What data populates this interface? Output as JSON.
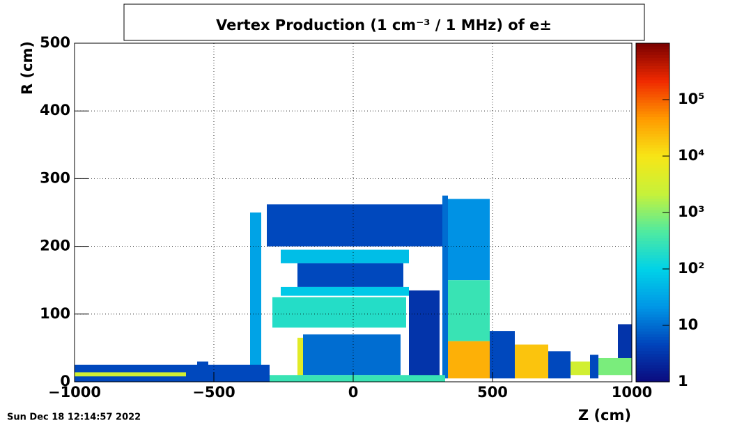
{
  "chart_data": {
    "type": "heatmap",
    "title": "Vertex Production (1 cm⁻³ / 1 MHz) of  e±",
    "x_label": "Z (cm)",
    "y_label": "R (cm)",
    "timestamp": "Sun Dec 18 12:14:57 2022",
    "xlim": [
      -1000,
      1000
    ],
    "ylim": [
      0,
      500
    ],
    "xticks": [
      {
        "value": -1000,
        "label": "−1000"
      },
      {
        "value": -500,
        "label": "−500"
      },
      0,
      500,
      1000
    ],
    "yticks": [
      0,
      100,
      200,
      300,
      400,
      500
    ],
    "zlim": [
      1,
      1000000
    ],
    "zscale": "log",
    "zticks": [
      1,
      10,
      {
        "value": 100,
        "label": "10²"
      },
      {
        "value": 1000,
        "label": "10³"
      },
      {
        "value": 10000,
        "label": "10⁴"
      },
      {
        "value": 100000,
        "label": "10⁵"
      }
    ],
    "grid": true,
    "colormap": [
      "#0b0a7e",
      "#0044bb",
      "#0096e6",
      "#00d2e8",
      "#50eaa0",
      "#c6f23a",
      "#f7e617",
      "#ff9a00",
      "#f02a00",
      "#7a0000"
    ],
    "cells": [
      {
        "z": [
          -310,
          320
        ],
        "r": [
          200,
          262
        ],
        "value": 5
      },
      {
        "z": [
          -370,
          -330
        ],
        "r": [
          20,
          250
        ],
        "value": 30
      },
      {
        "z": [
          320,
          340
        ],
        "r": [
          5,
          275
        ],
        "value": 10
      },
      {
        "z": [
          340,
          490
        ],
        "r": [
          150,
          270
        ],
        "value": 20
      },
      {
        "z": [
          340,
          490
        ],
        "r": [
          60,
          150
        ],
        "value": 300
      },
      {
        "z": [
          340,
          490
        ],
        "r": [
          5,
          60
        ],
        "value": 30000
      },
      {
        "z": [
          -260,
          200
        ],
        "r": [
          175,
          195
        ],
        "value": 60
      },
      {
        "z": [
          -200,
          180
        ],
        "r": [
          140,
          175
        ],
        "value": 5
      },
      {
        "z": [
          -260,
          200
        ],
        "r": [
          127,
          140
        ],
        "value": 80
      },
      {
        "z": [
          -290,
          190
        ],
        "r": [
          80,
          125
        ],
        "value": 200
      },
      {
        "z": [
          200,
          310
        ],
        "r": [
          5,
          135
        ],
        "value": 3
      },
      {
        "z": [
          -180,
          170
        ],
        "r": [
          10,
          70
        ],
        "value": 10
      },
      {
        "z": [
          -200,
          -180
        ],
        "r": [
          5,
          65
        ],
        "value": 5000
      },
      {
        "z": [
          490,
          580
        ],
        "r": [
          5,
          75
        ],
        "value": 5
      },
      {
        "z": [
          580,
          700
        ],
        "r": [
          5,
          55
        ],
        "value": 20000
      },
      {
        "z": [
          700,
          780
        ],
        "r": [
          5,
          45
        ],
        "value": 5
      },
      {
        "z": [
          780,
          850
        ],
        "r": [
          10,
          30
        ],
        "value": 3000
      },
      {
        "z": [
          850,
          880
        ],
        "r": [
          5,
          40
        ],
        "value": 5
      },
      {
        "z": [
          880,
          1000
        ],
        "r": [
          10,
          35
        ],
        "value": 800
      },
      {
        "z": [
          950,
          1000
        ],
        "r": [
          35,
          85
        ],
        "value": 3
      },
      {
        "z": [
          -1000,
          -300
        ],
        "r": [
          0,
          25
        ],
        "value": 5
      },
      {
        "z": [
          -1000,
          -600
        ],
        "r": [
          8,
          14
        ],
        "value": 3000
      },
      {
        "z": [
          -560,
          -520
        ],
        "r": [
          10,
          30
        ],
        "value": 5
      },
      {
        "z": [
          -300,
          330
        ],
        "r": [
          0,
          10
        ],
        "value": 300
      }
    ]
  }
}
